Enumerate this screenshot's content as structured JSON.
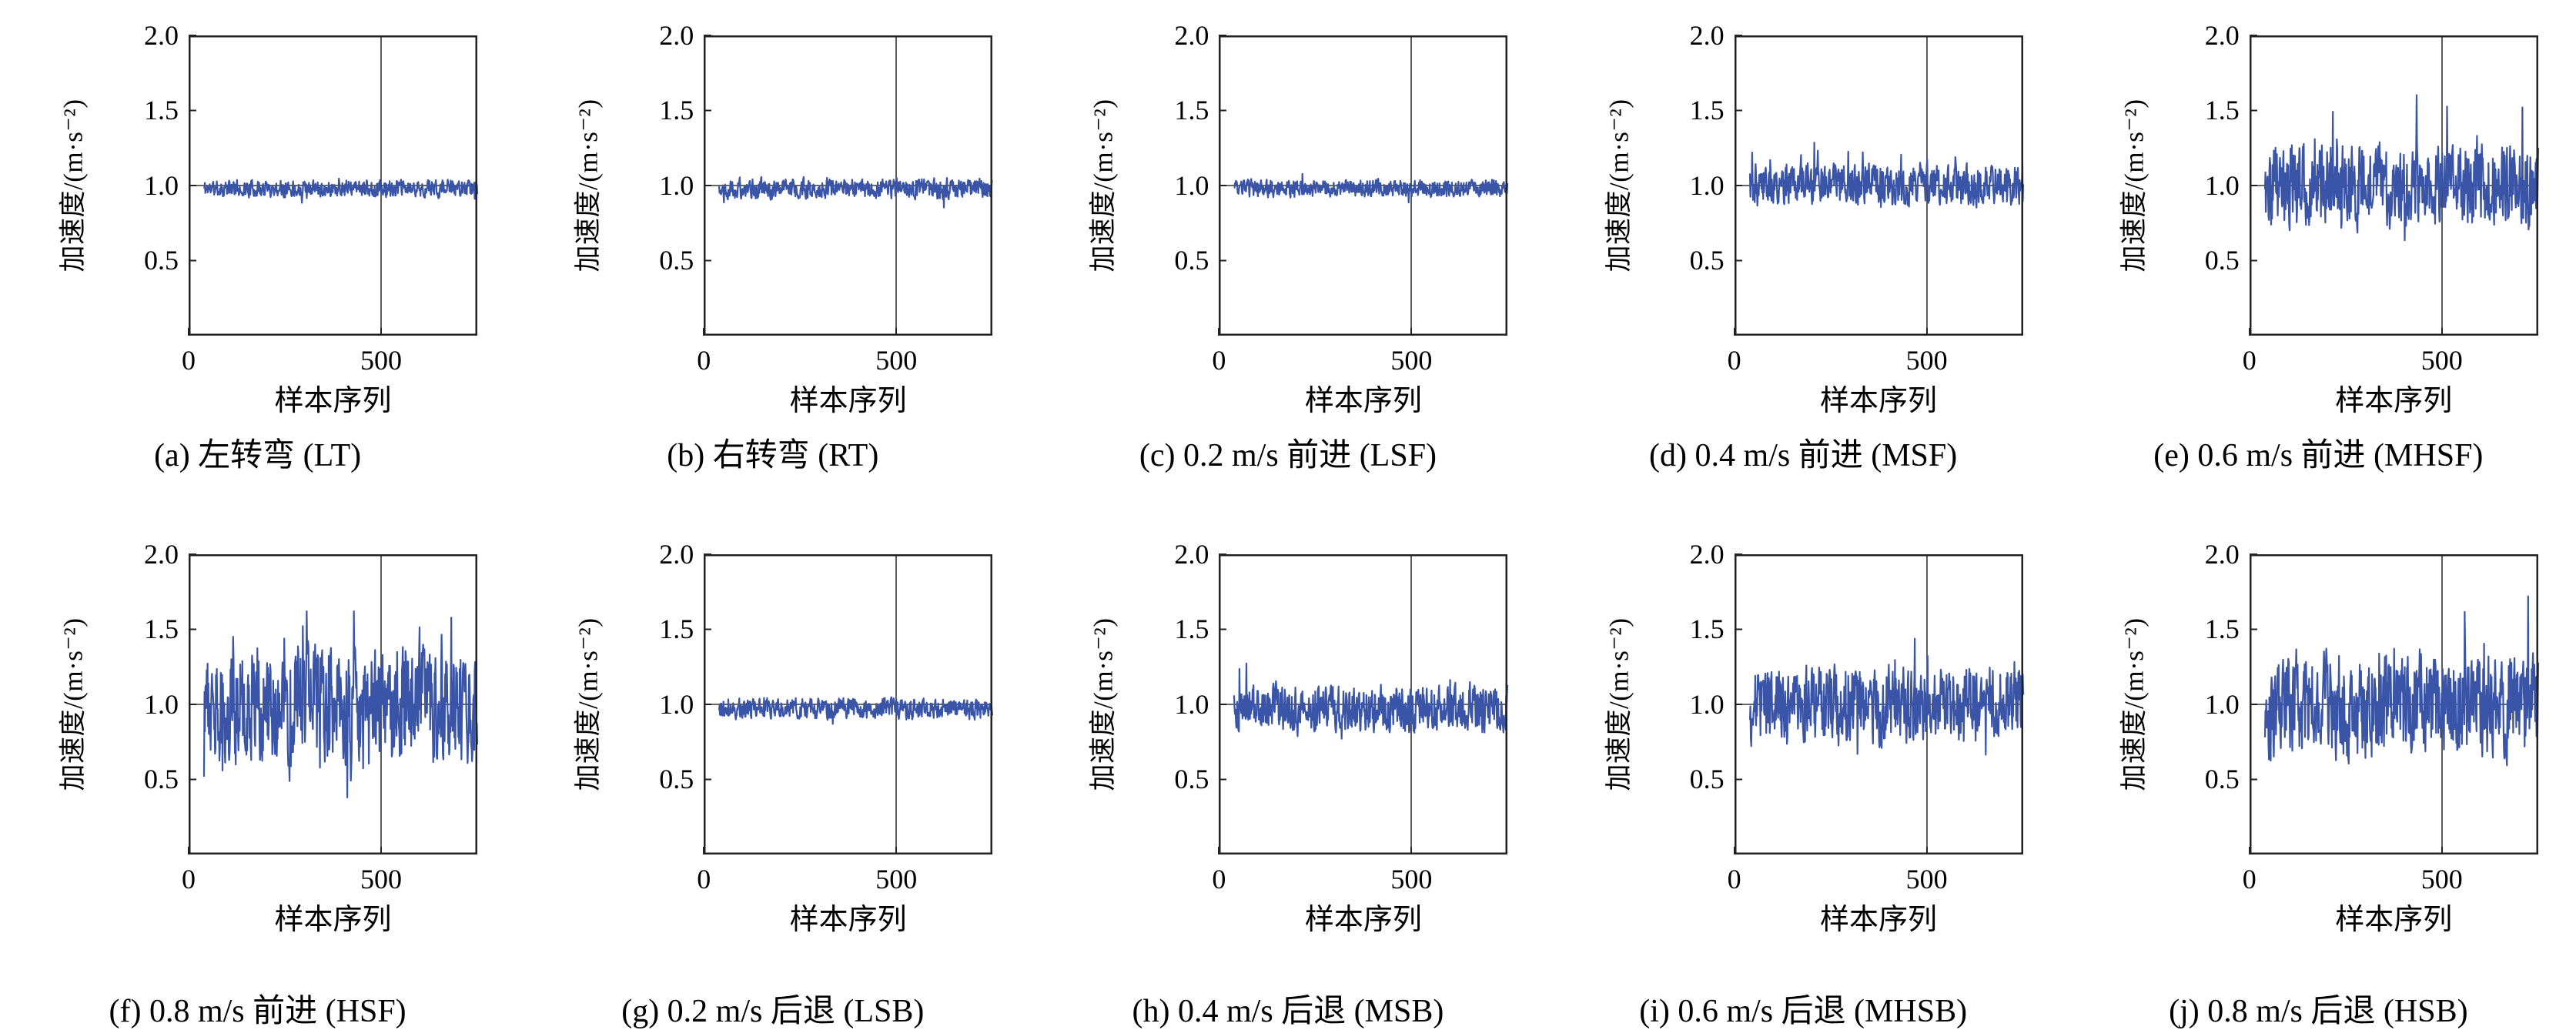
{
  "page": {
    "background": "#ffffff"
  },
  "axes": {
    "ylabel": "加速度/(m·s⁻²)",
    "xlabel": "样本序列",
    "yticks": [
      "2.0",
      "1.5",
      "1.0",
      "0.5"
    ],
    "ytick_values": [
      2.0,
      1.5,
      1.0,
      0.5
    ],
    "xticks": [
      "0",
      "500"
    ],
    "xtick_values": [
      0,
      500
    ],
    "ylim": [
      0,
      2.0
    ],
    "xlim": [
      0,
      750
    ],
    "grid_x": 500,
    "grid_y": 1.0,
    "grid_on": true,
    "legend": "none",
    "line_color": "#3a55a8",
    "frame_color": "#222222",
    "grid_color": "#333333"
  },
  "series_defaults": {
    "points": 620,
    "smooth": 0.3,
    "x_start": 40,
    "x_end": 750
  },
  "chart_data": [
    {
      "type": "line",
      "caption": "(a) 左转弯 (LT)",
      "baseline": 0.98,
      "noise_amp": 0.035,
      "spike_rate": 0.02,
      "spike_amp": 0.07,
      "spike_bias": 0.0,
      "min": 0.88,
      "max": 1.1,
      "seed": 11
    },
    {
      "type": "line",
      "caption": "(b) 右转弯 (RT)",
      "baseline": 0.98,
      "noise_amp": 0.042,
      "spike_rate": 0.02,
      "spike_amp": 0.08,
      "spike_bias": 0.0,
      "min": 0.85,
      "max": 1.12,
      "seed": 22
    },
    {
      "type": "line",
      "caption": "(c) 0.2 m/s 前进 (LSF)",
      "baseline": 0.98,
      "noise_amp": 0.035,
      "spike_rate": 0.02,
      "spike_amp": 0.07,
      "spike_bias": 0.0,
      "min": 0.87,
      "max": 1.1,
      "seed": 33
    },
    {
      "type": "line",
      "caption": "(d) 0.4 m/s 前进 (MSF)",
      "baseline": 1.0,
      "noise_amp": 0.085,
      "spike_rate": 0.05,
      "spike_amp": 0.28,
      "spike_bias": 0.7,
      "min": 0.74,
      "max": 1.4,
      "seed": 44
    },
    {
      "type": "line",
      "caption": "(e) 0.6 m/s 前进 (MHSF)",
      "baseline": 1.0,
      "noise_amp": 0.165,
      "spike_rate": 0.06,
      "spike_amp": 0.42,
      "spike_bias": 0.3,
      "min": 0.5,
      "max": 1.65,
      "seed": 55
    },
    {
      "type": "line",
      "caption": "(f) 0.8 m/s 前进 (HSF)",
      "baseline": 1.0,
      "noise_amp": 0.235,
      "spike_rate": 0.06,
      "spike_amp": 0.45,
      "spike_bias": 0.0,
      "min": 0.38,
      "max": 1.62,
      "seed": 66
    },
    {
      "type": "line",
      "caption": "(g) 0.2 m/s 后退 (LSB)",
      "baseline": 0.97,
      "noise_amp": 0.042,
      "spike_rate": 0.02,
      "spike_amp": 0.08,
      "spike_bias": 0.0,
      "min": 0.86,
      "max": 1.1,
      "seed": 77
    },
    {
      "type": "line",
      "caption": "(h) 0.4 m/s 后退 (MSB)",
      "baseline": 0.97,
      "noise_amp": 0.095,
      "spike_rate": 0.04,
      "spike_amp": 0.22,
      "spike_bias": 0.3,
      "min": 0.7,
      "max": 1.32,
      "seed": 88
    },
    {
      "type": "line",
      "caption": "(i) 0.6 m/s 后退 (MHSB)",
      "baseline": 1.0,
      "noise_amp": 0.155,
      "spike_rate": 0.05,
      "spike_amp": 0.35,
      "spike_bias": 0.2,
      "min": 0.58,
      "max": 1.52,
      "seed": 99
    },
    {
      "type": "line",
      "caption": "(j) 0.8 m/s 后退 (HSB)",
      "baseline": 1.0,
      "noise_amp": 0.215,
      "spike_rate": 0.06,
      "spike_amp": 0.48,
      "spike_bias": 0.2,
      "min": 0.5,
      "max": 1.72,
      "seed": 101
    }
  ]
}
